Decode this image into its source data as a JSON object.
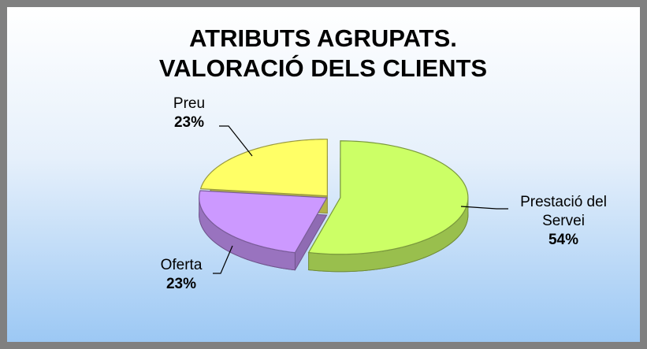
{
  "chart_data": {
    "type": "pie",
    "title": "ATRIBUTS AGRUPATS. VALORACIÓ DELS CLIENTS",
    "categories": [
      "Prestació del Servei",
      "Oferta",
      "Preu"
    ],
    "values": [
      54,
      23,
      23
    ],
    "value_labels": [
      "54%",
      "23%",
      "23%"
    ],
    "colors": [
      "#ccff66",
      "#cc99ff",
      "#ffff66"
    ]
  }
}
